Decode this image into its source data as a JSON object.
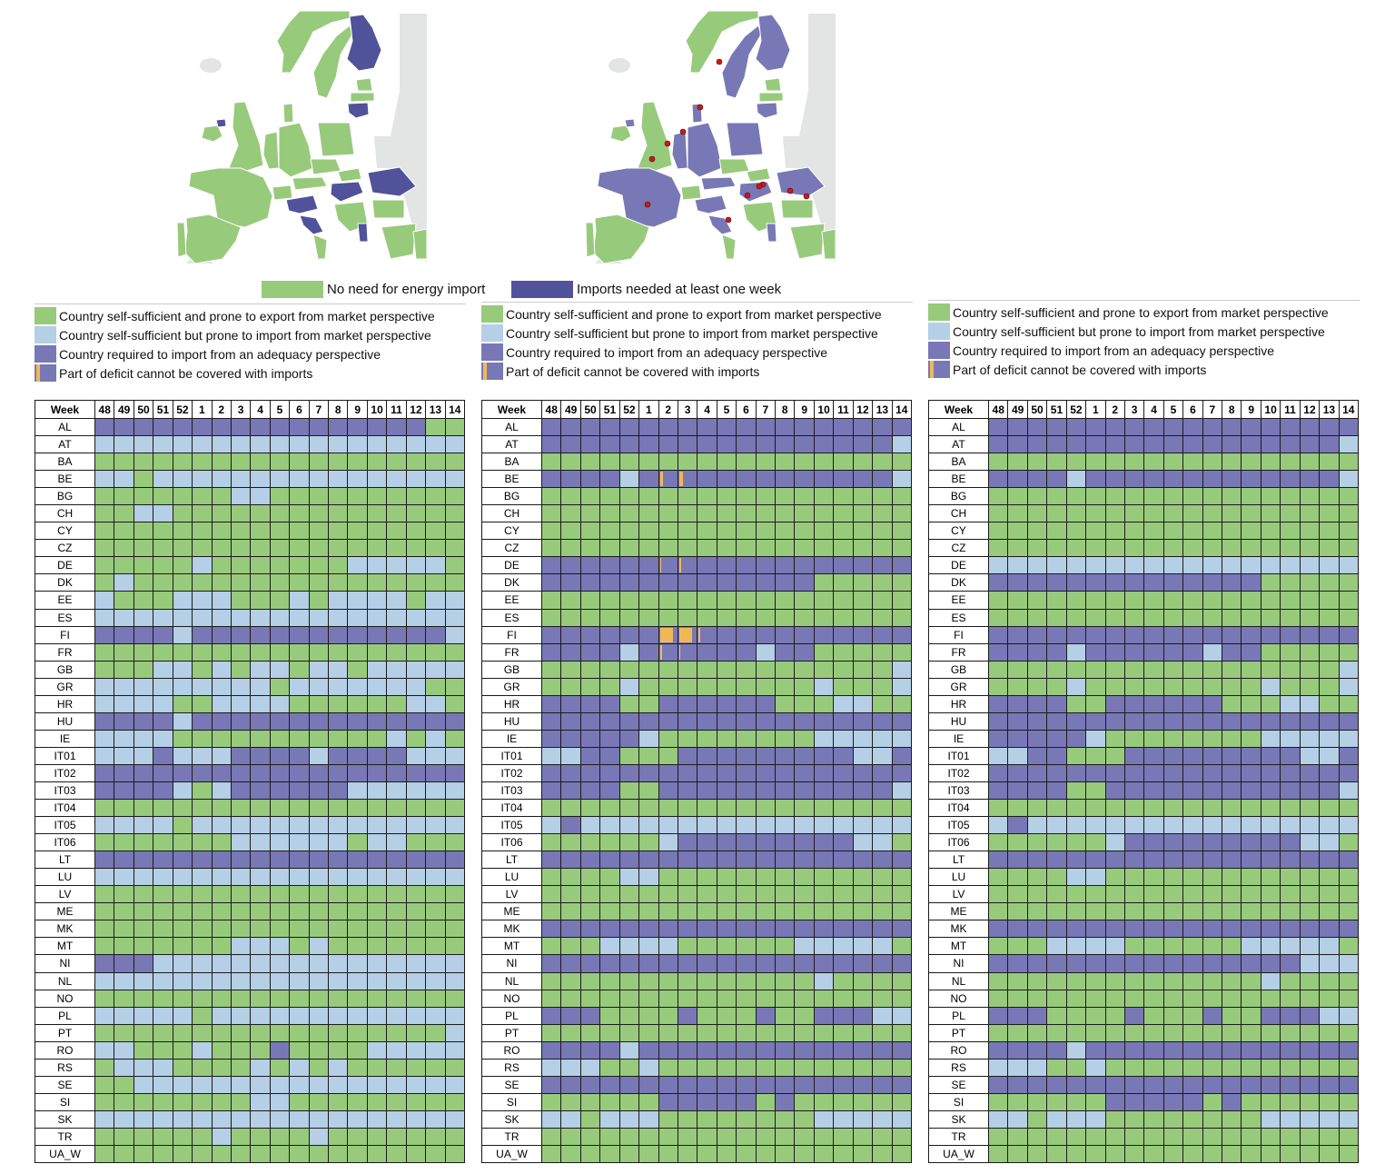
{
  "colors": {
    "G": "#98ca7c",
    "L": "#b4cfe6",
    "D": "#7878b6",
    "map_dark": "#50529a",
    "map_dark2": "#7878b6",
    "map_grey": "#e3e4e4",
    "deficit": "#f2b755",
    "star": "#e01010"
  },
  "top_legend": {
    "no_import": "No need for energy import",
    "imports_needed": "Imports needed at least one week"
  },
  "maps": [
    {
      "NO": "G",
      "SE": "G",
      "FI": "D",
      "EE": "G",
      "LV": "G",
      "LT": "D",
      "GB": "G",
      "IE": "G",
      "NI": "D",
      "FR": "G",
      "ES": "G",
      "PT": "G",
      "BENL": "G",
      "DE": "G",
      "DK": "G",
      "PL": "G",
      "CZ": "G",
      "AT": "G",
      "CH": "G",
      "SK": "G",
      "HU": "D",
      "RO": "D",
      "ITN": "D",
      "ITM": "D",
      "ITS": "G",
      "BALK": "G",
      "BG": "G",
      "GR": "G",
      "AL": "D",
      "TR": "G"
    },
    {
      "NO": "G",
      "SE": "D",
      "FI": "D",
      "EE": "G",
      "LV": "G",
      "LT": "D",
      "GB": "G",
      "IE": "G",
      "NI": "D",
      "FR": "D",
      "ES": "G",
      "PT": "G",
      "BENL": "D",
      "DE": "D",
      "DK": "D",
      "PL": "D",
      "CZ": "G",
      "AT": "D",
      "CH": "G",
      "SK": "G",
      "HU": "D",
      "RO": "D",
      "ITN": "D",
      "ITM": "D",
      "ITS": "G",
      "BALK": "G",
      "BG": "G",
      "GR": "G",
      "AL": "D",
      "TR": "G"
    }
  ],
  "legend_items": [
    {
      "status": "G",
      "label": "Country self-sufficient and prone to export from market perspective"
    },
    {
      "status": "L",
      "label": "Country self-sufficient but prone to import from market perspective"
    },
    {
      "status": "D",
      "label": "Country required to import from an adequacy perspective"
    },
    {
      "status": "X",
      "label": "Part of deficit cannot be covered with imports"
    }
  ],
  "chart_data": [
    {
      "type": "heatmap",
      "title": "",
      "week_header": "Week",
      "weeks": [
        "48",
        "49",
        "50",
        "51",
        "52",
        "1",
        "2",
        "3",
        "4",
        "5",
        "6",
        "7",
        "8",
        "9",
        "10",
        "11",
        "12",
        "13",
        "14"
      ],
      "legend": {
        "G": "Country self-sufficient and prone to export from market perspective",
        "L": "Country self-sufficient but prone to import from market perspective",
        "D": "Country required to import from an adequacy perspective"
      },
      "rows": [
        {
          "country": "AL",
          "status": "DDDDDDDDDDDDDDDDDGG"
        },
        {
          "country": "AT",
          "status": "LLLLLLLLLLLLLLLLLLL"
        },
        {
          "country": "BA",
          "status": "GGGGGGGGGGGGGGGGGGG"
        },
        {
          "country": "BE",
          "status": "LLGLLLLLLLLLLLLLLLL"
        },
        {
          "country": "BG",
          "status": "GGGGGGGLLGGGGGGGGGG"
        },
        {
          "country": "CH",
          "status": "GGLLGGGGGGGGGGGGGGG"
        },
        {
          "country": "CY",
          "status": "GGGGGGGGGGGGGGGGGGG"
        },
        {
          "country": "CZ",
          "status": "GGGGGGGGGGGGGGGGGGG"
        },
        {
          "country": "DE",
          "status": "GGGGGLGGGGGGGLLLLLG"
        },
        {
          "country": "DK",
          "status": "GLGGGGGGGGGGGGGGGGG"
        },
        {
          "country": "EE",
          "status": "LGGGLLLGGGLGLLLLGLL"
        },
        {
          "country": "ES",
          "status": "LLLLLLLLLLLLLLLLLLL"
        },
        {
          "country": "FI",
          "status": "DDDDLDDDDDDDDDDDDDL"
        },
        {
          "country": "FR",
          "status": "GGGGGGGGGGGGGGGGGGG"
        },
        {
          "country": "GB",
          "status": "GGGLLGLGLLGLLGLLLLL"
        },
        {
          "country": "GR",
          "status": "LLLLLLLLLGLLLLLLLGG"
        },
        {
          "country": "HR",
          "status": "LLLLGGLLLLGGGGGGLLG"
        },
        {
          "country": "HU",
          "status": "DDDDLDDDDDDDDDDDDDD"
        },
        {
          "country": "IE",
          "status": "LLLLGGGGGGGGGGGLGLG"
        },
        {
          "country": "IT01",
          "status": "LLLDLLLDDDDLDDDDLLL"
        },
        {
          "country": "IT02",
          "status": "DDDDDDDDDDDDDDDDDDD"
        },
        {
          "country": "IT03",
          "status": "DDDDLGLDDDDDDLLLLLL"
        },
        {
          "country": "IT04",
          "status": "GGGGGGGGGGGGGGGGGGG"
        },
        {
          "country": "IT05",
          "status": "LLLLGLLLLLLLLLLLLLL"
        },
        {
          "country": "IT06",
          "status": "GGGGGGGLLLLLLGLLGGG"
        },
        {
          "country": "LT",
          "status": "DDDDDDDDDDDDDDDDDDD"
        },
        {
          "country": "LU",
          "status": "LLLLLLLLLLLLLLLLLLL"
        },
        {
          "country": "LV",
          "status": "GGGGGGGGGGGGGGGGGGG"
        },
        {
          "country": "ME",
          "status": "GGGGGGGGGGGGGGGGGGG"
        },
        {
          "country": "MK",
          "status": "GGGGGGGGGGGGGGGGGGG"
        },
        {
          "country": "MT",
          "status": "GGGGGGGLLLGLGGGGGGG"
        },
        {
          "country": "NI",
          "status": "DDDLLLLLLLLLLLLLLLL"
        },
        {
          "country": "NL",
          "status": "LLLLLLLLLLLLLLLLLLL"
        },
        {
          "country": "NO",
          "status": "GGGGGGGGGGGGGGGGGGG"
        },
        {
          "country": "PL",
          "status": "LLLLLGLLLLLLLLLLLLL"
        },
        {
          "country": "PT",
          "status": "GGGGGGGGGGGGGGGGGGL"
        },
        {
          "country": "RO",
          "status": "LLGGGLGGGDGGGGLLLLL"
        },
        {
          "country": "RS",
          "status": "GLLLGGGGLGLGLGGGGGG"
        },
        {
          "country": "SE",
          "status": "GGLLLLLLLLLLLLLLLLL"
        },
        {
          "country": "SI",
          "status": "GGGGGGGGLLGGGGGGGGG"
        },
        {
          "country": "SK",
          "status": "LLLLLLLLLLLLLLLLLLL"
        },
        {
          "country": "TR",
          "status": "GGGGGGLGGGGLGGGGGGG"
        },
        {
          "country": "UA_W",
          "status": "GGGGGGGGGGGGGGGGGGG"
        }
      ],
      "deficits": []
    },
    {
      "type": "heatmap",
      "title": "",
      "week_header": "Week",
      "weeks": [
        "48",
        "49",
        "50",
        "51",
        "52",
        "1",
        "2",
        "3",
        "4",
        "5",
        "6",
        "7",
        "8",
        "9",
        "10",
        "11",
        "12",
        "13",
        "14"
      ],
      "legend": {
        "G": "Country self-sufficient and prone to export from market perspective",
        "L": "Country self-sufficient but prone to import from market perspective",
        "D": "Country required to import from an adequacy perspective",
        "deficit": "Part of deficit cannot be covered with imports"
      },
      "rows": [
        {
          "country": "AL",
          "status": "DDDDDDDDDDDDDDDDDDD"
        },
        {
          "country": "AT",
          "status": "DDDDDDDDDDDDDDDDDDL"
        },
        {
          "country": "BA",
          "status": "GGGGGGGGGGGGGGGGGGG"
        },
        {
          "country": "BE",
          "status": "DDDDLDDDDDDDDDDDDDL"
        },
        {
          "country": "BG",
          "status": "GGGGGGGGGGGGGGGGGGG"
        },
        {
          "country": "CH",
          "status": "GGGGGGGGGGGGGGGGGGG"
        },
        {
          "country": "CY",
          "status": "GGGGGGGGGGGGGGGGGGG"
        },
        {
          "country": "CZ",
          "status": "GGGGGGGGGGGGGGGGGGG"
        },
        {
          "country": "DE",
          "status": "DDDDDDDDDDDDDDDDDDD"
        },
        {
          "country": "DK",
          "status": "DDDDDDDDDDDDDDGGGGG"
        },
        {
          "country": "EE",
          "status": "GGGGGGGGGGGGGGGGGGG"
        },
        {
          "country": "ES",
          "status": "GGGGGGGGGGGGGGGGGGG"
        },
        {
          "country": "FI",
          "status": "DDDDDDDDDDDDDDDDDDD"
        },
        {
          "country": "FR",
          "status": "DDDDLDDDDDDLDDGGGGG"
        },
        {
          "country": "GB",
          "status": "GGGGGGGGGGGGGGGGGGL"
        },
        {
          "country": "GR",
          "status": "GGGGLGGGGGGGGGLGGGL"
        },
        {
          "country": "HR",
          "status": "DDDDGGDDDDDDGGGLLGG"
        },
        {
          "country": "HU",
          "status": "DDDDDDDDDDDDDDDDDDD"
        },
        {
          "country": "IE",
          "status": "DDDDDLGGGGGGGGLLLLL"
        },
        {
          "country": "IT01",
          "status": "LLDDGGGDDDDDDDDDLLD"
        },
        {
          "country": "IT02",
          "status": "DDDDDDDDDDDDDDDDDDD"
        },
        {
          "country": "IT03",
          "status": "DDDDGGDDDDDDDDDDDDL"
        },
        {
          "country": "IT04",
          "status": "GGGGGGGGGGGGGGGGGGG"
        },
        {
          "country": "IT05",
          "status": "LDLLLLLLLLLLLLLLLLL"
        },
        {
          "country": "IT06",
          "status": "GGGGGGLDDDDDDDDDLLG"
        },
        {
          "country": "LT",
          "status": "DDDDDDDDDDDDDDDDDDD"
        },
        {
          "country": "LU",
          "status": "GGGGLLGGGGGGGGGGGGG"
        },
        {
          "country": "LV",
          "status": "GGGGGGGGGGGGGGGGGGG"
        },
        {
          "country": "ME",
          "status": "GGGGGGGGGGGGGGGGGGG"
        },
        {
          "country": "MK",
          "status": "DDDDDDDDDDDDDDDDDDD"
        },
        {
          "country": "MT",
          "status": "GGGLLLLGGGGGGLLLLLG"
        },
        {
          "country": "NI",
          "status": "DDDDDDDDDDDDDDDDDDD"
        },
        {
          "country": "NL",
          "status": "GGGGGGGGGGGGGGLGGGG"
        },
        {
          "country": "NO",
          "status": "GGGGGGGGGGGGGGGGGGG"
        },
        {
          "country": "PL",
          "status": "DDDGGGGDGGGDGGDDDLL"
        },
        {
          "country": "PT",
          "status": "GGGGGGGGGGGGGGGGGGG"
        },
        {
          "country": "RO",
          "status": "DDDDLDDDDDDDDDDDDDD"
        },
        {
          "country": "RS",
          "status": "LLLGGLGGGGGGGGGGGGG"
        },
        {
          "country": "SE",
          "status": "DDDDDDDDDDDDDDDDDDD"
        },
        {
          "country": "SI",
          "status": "GGGGGGDDDDDGDGGGGGG"
        },
        {
          "country": "SK",
          "status": "LLGLLLGGGGGGGGLLLLL"
        },
        {
          "country": "TR",
          "status": "GGGGGGGGGGGGGGGGGGG"
        },
        {
          "country": "UA_W",
          "status": "GGGGGGGGGGGGGGGGGGG"
        }
      ],
      "deficits": [
        {
          "country": "BE",
          "week": "2",
          "share": 0.15
        },
        {
          "country": "BE",
          "week": "3",
          "share": 0.2
        },
        {
          "country": "DE",
          "week": "2",
          "share": 0.08
        },
        {
          "country": "DE",
          "week": "3",
          "share": 0.1
        },
        {
          "country": "FI",
          "week": "2",
          "share": 0.7
        },
        {
          "country": "FI",
          "week": "3",
          "share": 0.7
        },
        {
          "country": "FI",
          "week": "4",
          "share": 0.1
        },
        {
          "country": "FR",
          "week": "2",
          "share": 0.1
        },
        {
          "country": "FR",
          "week": "3",
          "share": 0.05
        }
      ]
    },
    {
      "type": "heatmap",
      "title": "",
      "week_header": "Week",
      "weeks": [
        "48",
        "49",
        "50",
        "51",
        "52",
        "1",
        "2",
        "3",
        "4",
        "5",
        "6",
        "7",
        "8",
        "9",
        "10",
        "11",
        "12",
        "13",
        "14"
      ],
      "legend": {
        "G": "Country self-sufficient and prone to export from market perspective",
        "L": "Country self-sufficient but prone to import from market perspective",
        "D": "Country required to import from an adequacy perspective",
        "deficit": "Part of deficit cannot be covered with imports"
      },
      "rows": [
        {
          "country": "AL",
          "status": "DDDDDDDDDDDDDDDDDDD"
        },
        {
          "country": "AT",
          "status": "DDDDDDDDDDDDDDDDDDL"
        },
        {
          "country": "BA",
          "status": "GGGGGGGGGGGGGGGGGGG"
        },
        {
          "country": "BE",
          "status": "DDDDLDDDDDDDDDDDDDL"
        },
        {
          "country": "BG",
          "status": "GGGGGGGGGGGGGGGGGGG"
        },
        {
          "country": "CH",
          "status": "GGGGGGGGGGGGGGGGGGG"
        },
        {
          "country": "CY",
          "status": "GGGGGGGGGGGGGGGGGGG"
        },
        {
          "country": "CZ",
          "status": "GGGGGGGGGGGGGGGGGGG"
        },
        {
          "country": "DE",
          "status": "LLLLLLLLLLLLLLLLLLL"
        },
        {
          "country": "DK",
          "status": "DDDDDDDDDDDDDDGGGGG"
        },
        {
          "country": "EE",
          "status": "GGGGGGGGGGGGGGGGGGG"
        },
        {
          "country": "ES",
          "status": "GGGGGGGGGGGGGGGGGGG"
        },
        {
          "country": "FI",
          "status": "DDDDDDDDDDDDDDDDDDD"
        },
        {
          "country": "FR",
          "status": "DDDDLDDDDDDLDDGGGGG"
        },
        {
          "country": "GB",
          "status": "GGGGGGGGGGGGGGGGGGL"
        },
        {
          "country": "GR",
          "status": "GGGGLGGGGGGGGGLGGGL"
        },
        {
          "country": "HR",
          "status": "DDDDGGDDDDDDGGGLLGG"
        },
        {
          "country": "HU",
          "status": "DDDDDDDDDDDDDDDDDDD"
        },
        {
          "country": "IE",
          "status": "DDDDDLGGGGGGGGLLLLL"
        },
        {
          "country": "IT01",
          "status": "LLDDGGGDDDDDDDDDLLD"
        },
        {
          "country": "IT02",
          "status": "DDDDDDDDDDDDDDDDDDD"
        },
        {
          "country": "IT03",
          "status": "DDDDGGDDDDDDDDDDDDL"
        },
        {
          "country": "IT04",
          "status": "GGGGGGGGGGGGGGGGGGG"
        },
        {
          "country": "IT05",
          "status": "LDLLLLLLLLLLLLLLLLL"
        },
        {
          "country": "IT06",
          "status": "GGGGGGLDDDDDDDDDLLG"
        },
        {
          "country": "LT",
          "status": "DDDDDDDDDDDDDDDDDDD"
        },
        {
          "country": "LU",
          "status": "GGGGLLGGGGGGGGGGGGG"
        },
        {
          "country": "LV",
          "status": "GGGGGGGGGGGGGGGGGGG"
        },
        {
          "country": "ME",
          "status": "GGGGGGGGGGGGGGGGGGG"
        },
        {
          "country": "MK",
          "status": "DDDDDDDDDDDDDDDDDDD"
        },
        {
          "country": "MT",
          "status": "GGGLLLLGGGGGGLLLLLG"
        },
        {
          "country": "NI",
          "status": "DDDDDDDDDDDDDDDDLLL"
        },
        {
          "country": "NL",
          "status": "GGGGGGGGGGGGGGLGGGG"
        },
        {
          "country": "NO",
          "status": "GGGGGGGGGGGGGGGGGGG"
        },
        {
          "country": "PL",
          "status": "DDDGGGGDGGGDGGDDDLL"
        },
        {
          "country": "PT",
          "status": "GGGGGGGGGGGGGGGGGGG"
        },
        {
          "country": "RO",
          "status": "DDDDLDDDDDDDDDDDDDD"
        },
        {
          "country": "RS",
          "status": "LLLGGLGGGGGGGGGGGGG"
        },
        {
          "country": "SE",
          "status": "DDDDDDDDDDDDDDDDDDD"
        },
        {
          "country": "SI",
          "status": "GGGGGGDDDDDGDGGGGGG"
        },
        {
          "country": "SK",
          "status": "LLGLLLGGGGGGGGLLLLL"
        },
        {
          "country": "TR",
          "status": "GGGGGGGGGGGGGGGGGGG"
        },
        {
          "country": "UA_W",
          "status": "GGGGGGGGGGGGGGGGGGG"
        }
      ],
      "deficits": []
    }
  ]
}
